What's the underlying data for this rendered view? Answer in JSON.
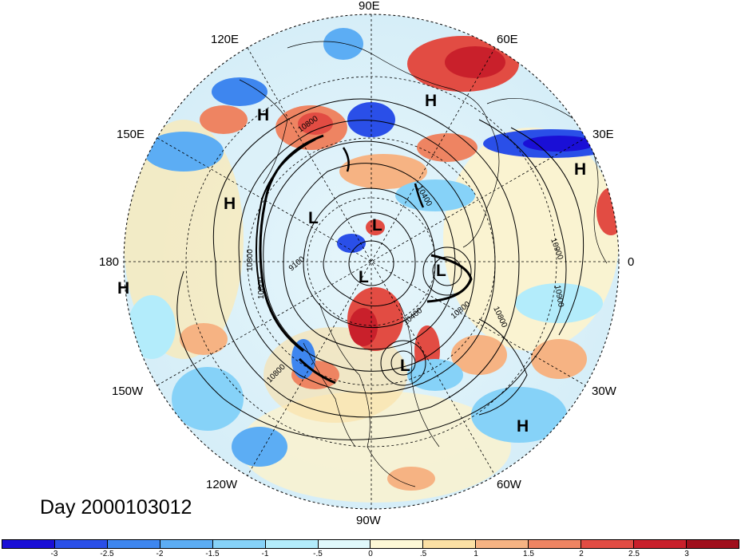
{
  "title": "Day 2000103012",
  "longitude_labels": {
    "e90": "90E",
    "e60": "60E",
    "e30": "30E",
    "zero": "0",
    "w30": "30W",
    "w60": "60W",
    "w90": "90W",
    "w120": "120W",
    "w150": "150W",
    "d180": "180",
    "e150": "150E",
    "e120": "120E"
  },
  "pressure_centers": {
    "h1": "H",
    "h2": "H",
    "h3": "H",
    "h4": "H",
    "h5": "H",
    "h6": "H",
    "l1": "L",
    "l2": "L",
    "l3": "L",
    "l4": "L",
    "l5": "L"
  },
  "contour_labels": {
    "c1": "10800",
    "c2": "10800",
    "c3": "10800",
    "c4": "10800",
    "c5": "10800",
    "c6": "10800",
    "c7": "10400",
    "c8": "10400",
    "c9": "10900",
    "c10": "10900",
    "c11": "9100"
  },
  "colorbar": {
    "colors": [
      "#1a0fd6",
      "#2a4fe8",
      "#3e86ef",
      "#5cadf4",
      "#86d2f8",
      "#b3ecfb",
      "#e0f8fb",
      "#fdf8d6",
      "#fbe0a4",
      "#f6b383",
      "#ee8462",
      "#e24c43",
      "#c9202b",
      "#a00f1c"
    ],
    "ticks": [
      "-3",
      "-2.5",
      "-2",
      "-1.5",
      "-1",
      "-.5",
      "0",
      ".5",
      "1",
      "1.5",
      "2",
      "2.5",
      "3"
    ]
  },
  "colors": {
    "background": "#ffffff",
    "map_outline": "#000000"
  }
}
